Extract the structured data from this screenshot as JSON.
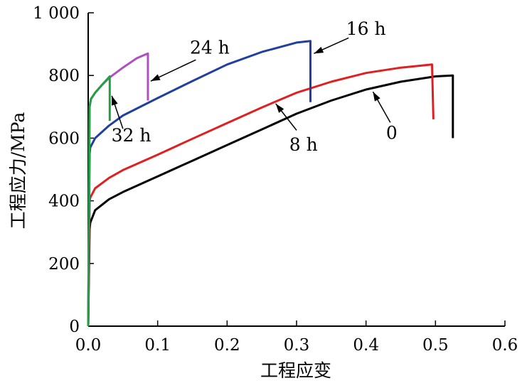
{
  "chart_data": {
    "type": "line",
    "title": "",
    "xlabel": "工程应变",
    "ylabel": "工程应力/MPa",
    "xlim": [
      0,
      0.6
    ],
    "ylim": [
      0,
      1000
    ],
    "x_ticks": [
      {
        "value": 0,
        "label": "0.0"
      },
      {
        "value": 0.1,
        "label": "0.1"
      },
      {
        "value": 0.2,
        "label": "0.2"
      },
      {
        "value": 0.3,
        "label": "0.3"
      },
      {
        "value": 0.4,
        "label": "0.4"
      },
      {
        "value": 0.5,
        "label": "0.5"
      },
      {
        "value": 0.6,
        "label": "0.6"
      }
    ],
    "y_ticks": [
      {
        "value": 0,
        "label": "0"
      },
      {
        "value": 200,
        "label": "200"
      },
      {
        "value": 400,
        "label": "400"
      },
      {
        "value": 600,
        "label": "600"
      },
      {
        "value": 800,
        "label": "800"
      },
      {
        "value": 1000,
        "label": "1 000"
      }
    ],
    "grid": false,
    "series": [
      {
        "name": "0",
        "color": "#000000",
        "x": [
          0,
          0.002,
          0.003,
          0.01,
          0.03,
          0.05,
          0.1,
          0.15,
          0.2,
          0.25,
          0.3,
          0.35,
          0.4,
          0.45,
          0.5,
          0.525,
          0.525
        ],
        "y": [
          0,
          310,
          330,
          370,
          405,
          428,
          478,
          528,
          578,
          628,
          678,
          720,
          755,
          780,
          797,
          800,
          600
        ]
      },
      {
        "name": "8 h",
        "color": "#e02020",
        "x": [
          0,
          0.002,
          0.003,
          0.01,
          0.03,
          0.05,
          0.1,
          0.15,
          0.2,
          0.25,
          0.3,
          0.35,
          0.4,
          0.45,
          0.495,
          0.497
        ],
        "y": [
          0,
          400,
          410,
          440,
          473,
          498,
          547,
          598,
          648,
          698,
          745,
          780,
          808,
          825,
          835,
          660
        ]
      },
      {
        "name": "16 h",
        "color": "#2040a0",
        "x": [
          0,
          0.002,
          0.003,
          0.01,
          0.03,
          0.05,
          0.1,
          0.15,
          0.2,
          0.25,
          0.3,
          0.32,
          0.32
        ],
        "y": [
          0,
          550,
          570,
          600,
          640,
          672,
          728,
          782,
          835,
          875,
          905,
          910,
          715
        ]
      },
      {
        "name": "24 h",
        "color": "#b050c0",
        "x": [
          0,
          0.002,
          0.004,
          0.01,
          0.02,
          0.03,
          0.05,
          0.07,
          0.086,
          0.086
        ],
        "y": [
          0,
          700,
          725,
          745,
          770,
          792,
          825,
          855,
          870,
          720
        ]
      },
      {
        "name": "32 h",
        "color": "#20a040",
        "x": [
          0,
          0.002,
          0.004,
          0.01,
          0.02,
          0.031,
          0.031
        ],
        "y": [
          0,
          700,
          725,
          745,
          770,
          797,
          655
        ]
      }
    ],
    "annotations": [
      {
        "series": "32 h",
        "text": "32 h",
        "label_at": [
          0.062,
          590
        ],
        "arrow_from": [
          0.05,
          630
        ],
        "arrow_to": [
          0.034,
          735
        ]
      },
      {
        "series": "24 h",
        "text": "24 h",
        "label_at": [
          0.175,
          870
        ],
        "arrow_from": [
          0.155,
          850
        ],
        "arrow_to": [
          0.09,
          782
        ]
      },
      {
        "series": "16 h",
        "text": "16 h",
        "label_at": [
          0.4,
          930
        ],
        "arrow_from": [
          0.375,
          920
        ],
        "arrow_to": [
          0.325,
          870
        ]
      },
      {
        "series": "8 h",
        "text": "8 h",
        "label_at": [
          0.31,
          560
        ],
        "arrow_from": [
          0.3,
          625
        ],
        "arrow_to": [
          0.27,
          710
        ]
      },
      {
        "series": "0",
        "text": "0",
        "label_at": [
          0.437,
          598
        ],
        "arrow_from": [
          0.435,
          650
        ],
        "arrow_to": [
          0.41,
          748
        ]
      }
    ]
  }
}
